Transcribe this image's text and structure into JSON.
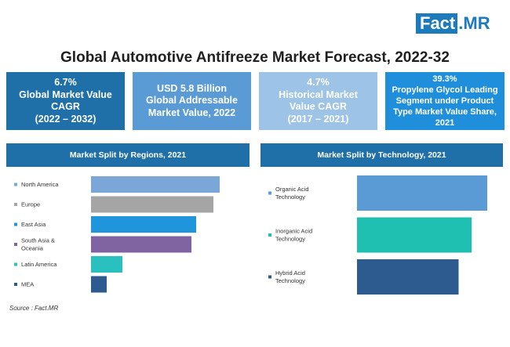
{
  "logo": {
    "fact": "Fact",
    "dot": ".",
    "mr": "MR"
  },
  "title": "Global Automotive Antifreeze Market Forecast, 2022-32",
  "kpis": [
    {
      "lines": [
        "6.7%",
        "Global Market Value",
        "CAGR",
        "(2022 – 2032)"
      ],
      "color": "#1f6fa8"
    },
    {
      "lines": [
        "USD 5.8 Billion",
        "Global Addressable",
        "Market Value, 2022"
      ],
      "color": "#5b9bd5"
    },
    {
      "lines": [
        "4.7%",
        "Historical Market",
        "Value CAGR",
        "(2017 – 2021)"
      ],
      "color": "#9dc3e6"
    },
    {
      "lines": [
        "39.3%",
        "Propylene Glycol Leading",
        "Segment under Product",
        "Type Market Value Share,",
        "2021"
      ],
      "color": "#1f8fdc"
    }
  ],
  "source": "Source : Fact.MR",
  "chart_data": [
    {
      "type": "bar",
      "orientation": "horizontal",
      "title": "Market Split by Regions, 2021",
      "categories": [
        [
          "North America"
        ],
        [
          "Europe"
        ],
        [
          "East Asia"
        ],
        [
          "South Asia &",
          "Oceania"
        ],
        [
          "Latin America"
        ],
        [
          "MEA"
        ]
      ],
      "values": [
        82,
        78,
        67,
        64,
        20,
        10
      ],
      "colors": [
        "#7aa7d8",
        "#a5a5a5",
        "#1f95dc",
        "#8064a2",
        "#2bc0c0",
        "#2e5b8f"
      ],
      "xlim": [
        0,
        100
      ],
      "grid": false,
      "axis_labels": false
    },
    {
      "type": "bar",
      "orientation": "horizontal",
      "title": "Market Split by Technology, 2021",
      "categories": [
        [
          "Organic Acid",
          "Technology"
        ],
        [
          "Inorganic Acid",
          "Technology"
        ],
        [
          "Hybrid Acid",
          "Technology"
        ]
      ],
      "values": [
        100,
        88,
        78
      ],
      "colors": [
        "#5b9bd5",
        "#1fbfb1",
        "#2e5b8f"
      ],
      "xlim": [
        0,
        100
      ],
      "grid": false,
      "axis_labels": false
    }
  ]
}
